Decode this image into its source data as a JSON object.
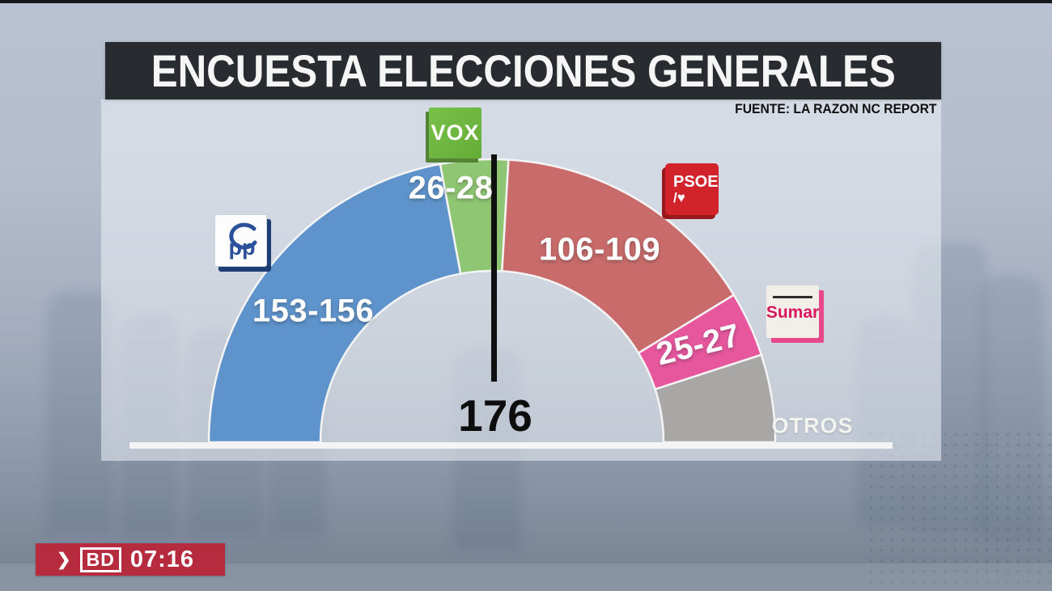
{
  "header": {
    "title": "ENCUESTA ELECCIONES GENERALES",
    "source": "FUENTE: LA RAZON NC REPORT"
  },
  "chart_data": {
    "type": "pie",
    "variant": "semicircle-parliament-gauge",
    "title": "ENCUESTA ELECCIONES GENERALES",
    "source": "FUENTE: LA RAZON NC REPORT",
    "total_seats": 350,
    "start_angle": 180,
    "end_angle": 0,
    "majority": {
      "value": 176,
      "label": "176"
    },
    "series": [
      {
        "name": "PP",
        "range": "153-156",
        "low": 153,
        "high": 156,
        "seats_mid": 154.5,
        "color": "#5e93cb"
      },
      {
        "name": "VOX",
        "range": "26-28",
        "low": 26,
        "high": 28,
        "seats_mid": 27,
        "color": "#8ec673"
      },
      {
        "name": "PSOE",
        "range": "106-109",
        "low": 106,
        "high": 109,
        "seats_mid": 107.5,
        "color": "#c96b6b"
      },
      {
        "name": "SUMAR",
        "range": "25-27",
        "low": 25,
        "high": 27,
        "seats_mid": 26,
        "color": "#e6579e"
      },
      {
        "name": "OTROS",
        "range": "",
        "seats_mid": 35,
        "color": "#a8a7a5"
      }
    ],
    "baseline_color": "#f4f4f4",
    "majority_line_color": "#101010"
  },
  "logos": {
    "pp": {
      "text": "pp",
      "accent": "#2b519b"
    },
    "vox": {
      "text": "VOX",
      "box_color": "#6cb23e"
    },
    "psoe": {
      "line1": "PSOE",
      "line2": "/♥",
      "box_color": "#d2232a"
    },
    "sumar": {
      "text": "Sumar",
      "accent": "#d6165f",
      "shadow": "#e8498a"
    }
  },
  "ticker": {
    "chevron": "❯",
    "channel": "BD",
    "time": "07:16",
    "color": "#b72b3f"
  }
}
